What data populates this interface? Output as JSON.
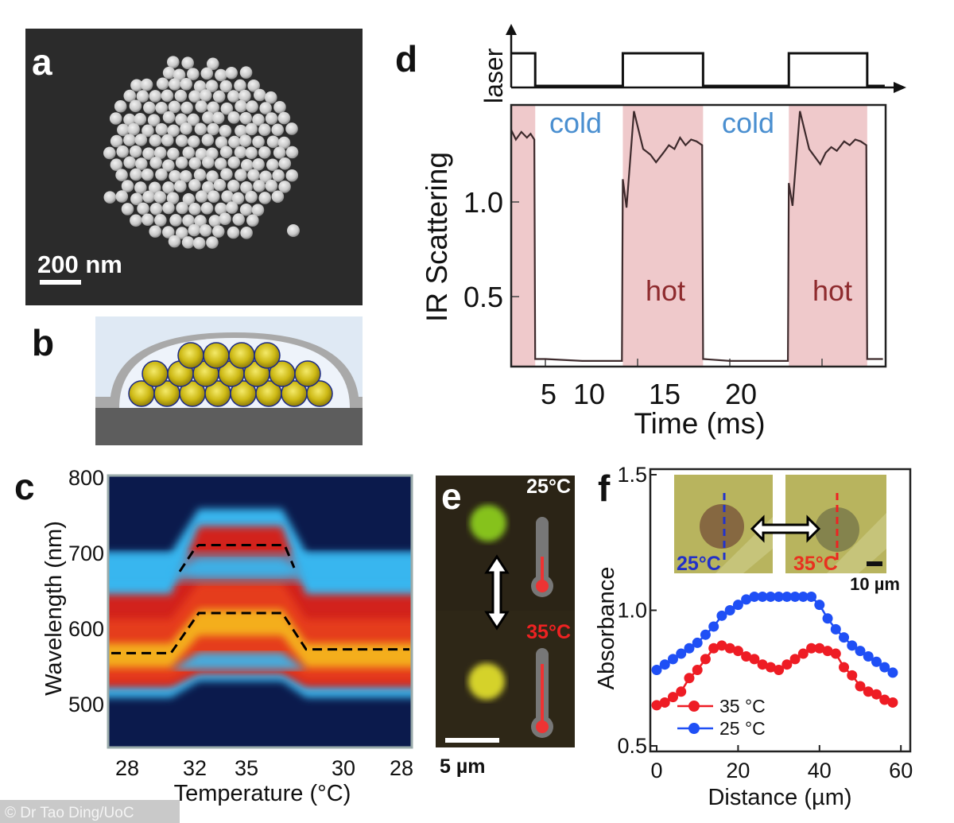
{
  "figure": {
    "panel_labels": {
      "a": "a",
      "b": "b",
      "c": "c",
      "d": "d",
      "e": "e",
      "f": "f"
    },
    "credit": "© Dr Tao Ding/UoC"
  },
  "panel_a": {
    "scale_bar": "200 nm",
    "background": "#2b2b2b"
  },
  "panel_b": {
    "colors": {
      "sky": "#dfe9f4",
      "shell": "#a9a9a9",
      "substrate": "#5d5d5d",
      "particle": "#d8c51c",
      "particle_edge": "#1c2a86"
    }
  },
  "panel_e": {
    "temp_top": "25°C",
    "temp_bottom": "35°C",
    "scale_bar": "5 µm",
    "colors": {
      "particle_top": "#86c21f",
      "particle_bottom": "#d5d22c",
      "hot_label": "#ee2222"
    }
  },
  "chart_data": [
    {
      "id": "d",
      "type": "line",
      "xlabel": "Time (ms)",
      "ylabel": "IR Scattering",
      "x_ticks": [
        "5",
        "10",
        "15",
        "20"
      ],
      "y_ticks": [
        "0.5",
        "1.0"
      ],
      "xlim": [
        3.15,
        23.4
      ],
      "ylim": [
        0.13,
        1.51
      ],
      "laser_label": "laser",
      "hot_intervals_ms": [
        [
          3.15,
          4.45
        ],
        [
          9.2,
          13.55
        ],
        [
          18.2,
          22.45
        ]
      ],
      "region_labels": {
        "cold": "cold",
        "hot": "hot"
      },
      "colors": {
        "hot_shade": "#efc9cb",
        "cold_text": "#4a8fd0",
        "hot_text": "#8e2b2e",
        "trace": "#3d2a2c"
      },
      "series": [
        {
          "points": [
            [
              3.15,
              1.38
            ],
            [
              3.4,
              1.33
            ],
            [
              3.7,
              1.37
            ],
            [
              4.0,
              1.34
            ],
            [
              4.2,
              1.36
            ],
            [
              4.4,
              1.33
            ],
            [
              4.45,
              0.17
            ],
            [
              5.0,
              0.17
            ],
            [
              7.0,
              0.16
            ],
            [
              9.15,
              0.16
            ],
            [
              9.2,
              1.12
            ],
            [
              9.4,
              0.97
            ],
            [
              9.8,
              1.48
            ],
            [
              10.3,
              1.28
            ],
            [
              10.7,
              1.25
            ],
            [
              11.0,
              1.21
            ],
            [
              11.4,
              1.26
            ],
            [
              11.7,
              1.3
            ],
            [
              12.0,
              1.28
            ],
            [
              12.3,
              1.34
            ],
            [
              12.6,
              1.3
            ],
            [
              12.9,
              1.33
            ],
            [
              13.2,
              1.32
            ],
            [
              13.5,
              1.3
            ],
            [
              13.55,
              0.17
            ],
            [
              15.0,
              0.16
            ],
            [
              18.15,
              0.16
            ],
            [
              18.2,
              1.1
            ],
            [
              18.4,
              0.98
            ],
            [
              18.8,
              1.48
            ],
            [
              19.3,
              1.28
            ],
            [
              19.6,
              1.24
            ],
            [
              19.9,
              1.2
            ],
            [
              20.2,
              1.26
            ],
            [
              20.5,
              1.29
            ],
            [
              20.8,
              1.27
            ],
            [
              21.2,
              1.32
            ],
            [
              21.5,
              1.3
            ],
            [
              21.8,
              1.33
            ],
            [
              22.1,
              1.32
            ],
            [
              22.4,
              1.3
            ],
            [
              22.45,
              0.17
            ],
            [
              23.3,
              0.17
            ]
          ]
        }
      ]
    },
    {
      "id": "c",
      "type": "heatmap",
      "xlabel": "Temperature (°C)",
      "ylabel": "Wavelength (nm)",
      "x_ticks": [
        "28",
        "32",
        "35",
        "30",
        "28"
      ],
      "y_ticks": [
        "500",
        "600",
        "700",
        "800"
      ],
      "ylim": [
        442,
        800
      ],
      "lower_peak_nm": {
        "cold": 567,
        "hot": 620,
        "cooled": 572
      },
      "upper_peak_nm_hot": 710,
      "colors": {
        "background": "#0b1a4c",
        "low": "#39b6ef",
        "mid": "#d2221a",
        "high": "#f7c21e"
      }
    },
    {
      "id": "f",
      "type": "line",
      "xlabel": "Distance (µm)",
      "ylabel": "Absorbance",
      "x_ticks": [
        "0",
        "20",
        "40",
        "60"
      ],
      "y_ticks": [
        "0.5",
        "1.0",
        "1.5"
      ],
      "xlim": [
        -2,
        62
      ],
      "ylim": [
        0.5,
        1.5
      ],
      "legend_placement": "bottom-left",
      "inset": {
        "label_left": "25°C",
        "label_right": "35°C",
        "scale_bar": "10 µm"
      },
      "x": [
        0,
        2,
        4,
        6,
        8,
        10,
        12,
        14,
        16,
        18,
        20,
        22,
        24,
        26,
        28,
        30,
        32,
        34,
        36,
        38,
        40,
        42,
        44,
        46,
        48,
        50,
        52,
        54,
        56,
        58
      ],
      "series": [
        {
          "name": "35 °C",
          "color": "#ee1c24",
          "values": [
            0.65,
            0.66,
            0.68,
            0.7,
            0.75,
            0.78,
            0.82,
            0.86,
            0.87,
            0.86,
            0.85,
            0.83,
            0.82,
            0.8,
            0.79,
            0.78,
            0.8,
            0.82,
            0.84,
            0.86,
            0.86,
            0.85,
            0.84,
            0.79,
            0.76,
            0.72,
            0.7,
            0.69,
            0.67,
            0.66
          ]
        },
        {
          "name": "25 °C",
          "color": "#1f4ff5",
          "values": [
            0.78,
            0.8,
            0.82,
            0.84,
            0.86,
            0.88,
            0.91,
            0.94,
            0.98,
            1.0,
            1.02,
            1.04,
            1.05,
            1.05,
            1.05,
            1.05,
            1.05,
            1.05,
            1.05,
            1.05,
            1.02,
            0.97,
            0.93,
            0.9,
            0.87,
            0.85,
            0.83,
            0.81,
            0.79,
            0.77
          ]
        }
      ]
    }
  ]
}
